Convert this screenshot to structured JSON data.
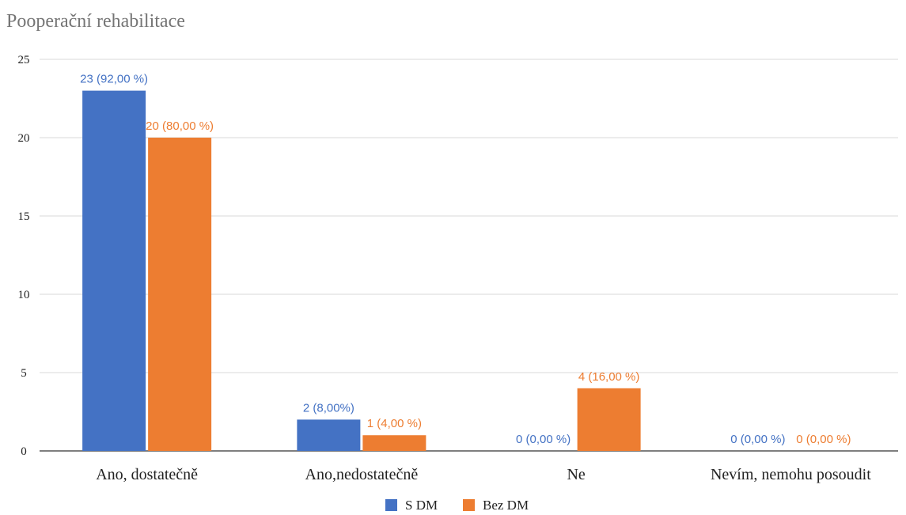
{
  "chart_data": {
    "type": "bar",
    "title": "Pooperační rehabilitace",
    "categories": [
      "Ano, dostatečně",
      "Ano,nedostatečně",
      "Ne",
      "Nevím, nemohu posoudit"
    ],
    "series": [
      {
        "name": "S DM",
        "color": "#4472C4",
        "values": [
          23,
          2,
          0,
          0
        ],
        "labels": [
          "23 (92,00 %)",
          "2 (8,00%)",
          "0 (0,00 %)",
          "0 (0,00 %)"
        ]
      },
      {
        "name": "Bez DM",
        "color": "#ED7D31",
        "values": [
          20,
          1,
          4,
          0
        ],
        "labels": [
          "20 (80,00 %)",
          "1 (4,00 %)",
          "4 (16,00 %)",
          "0 (0,00 %)"
        ]
      }
    ],
    "ylim": [
      0,
      25
    ],
    "yticks": [
      "0",
      "5",
      "10",
      "15",
      "20",
      "25"
    ],
    "grid": true,
    "legend_position": "bottom"
  }
}
